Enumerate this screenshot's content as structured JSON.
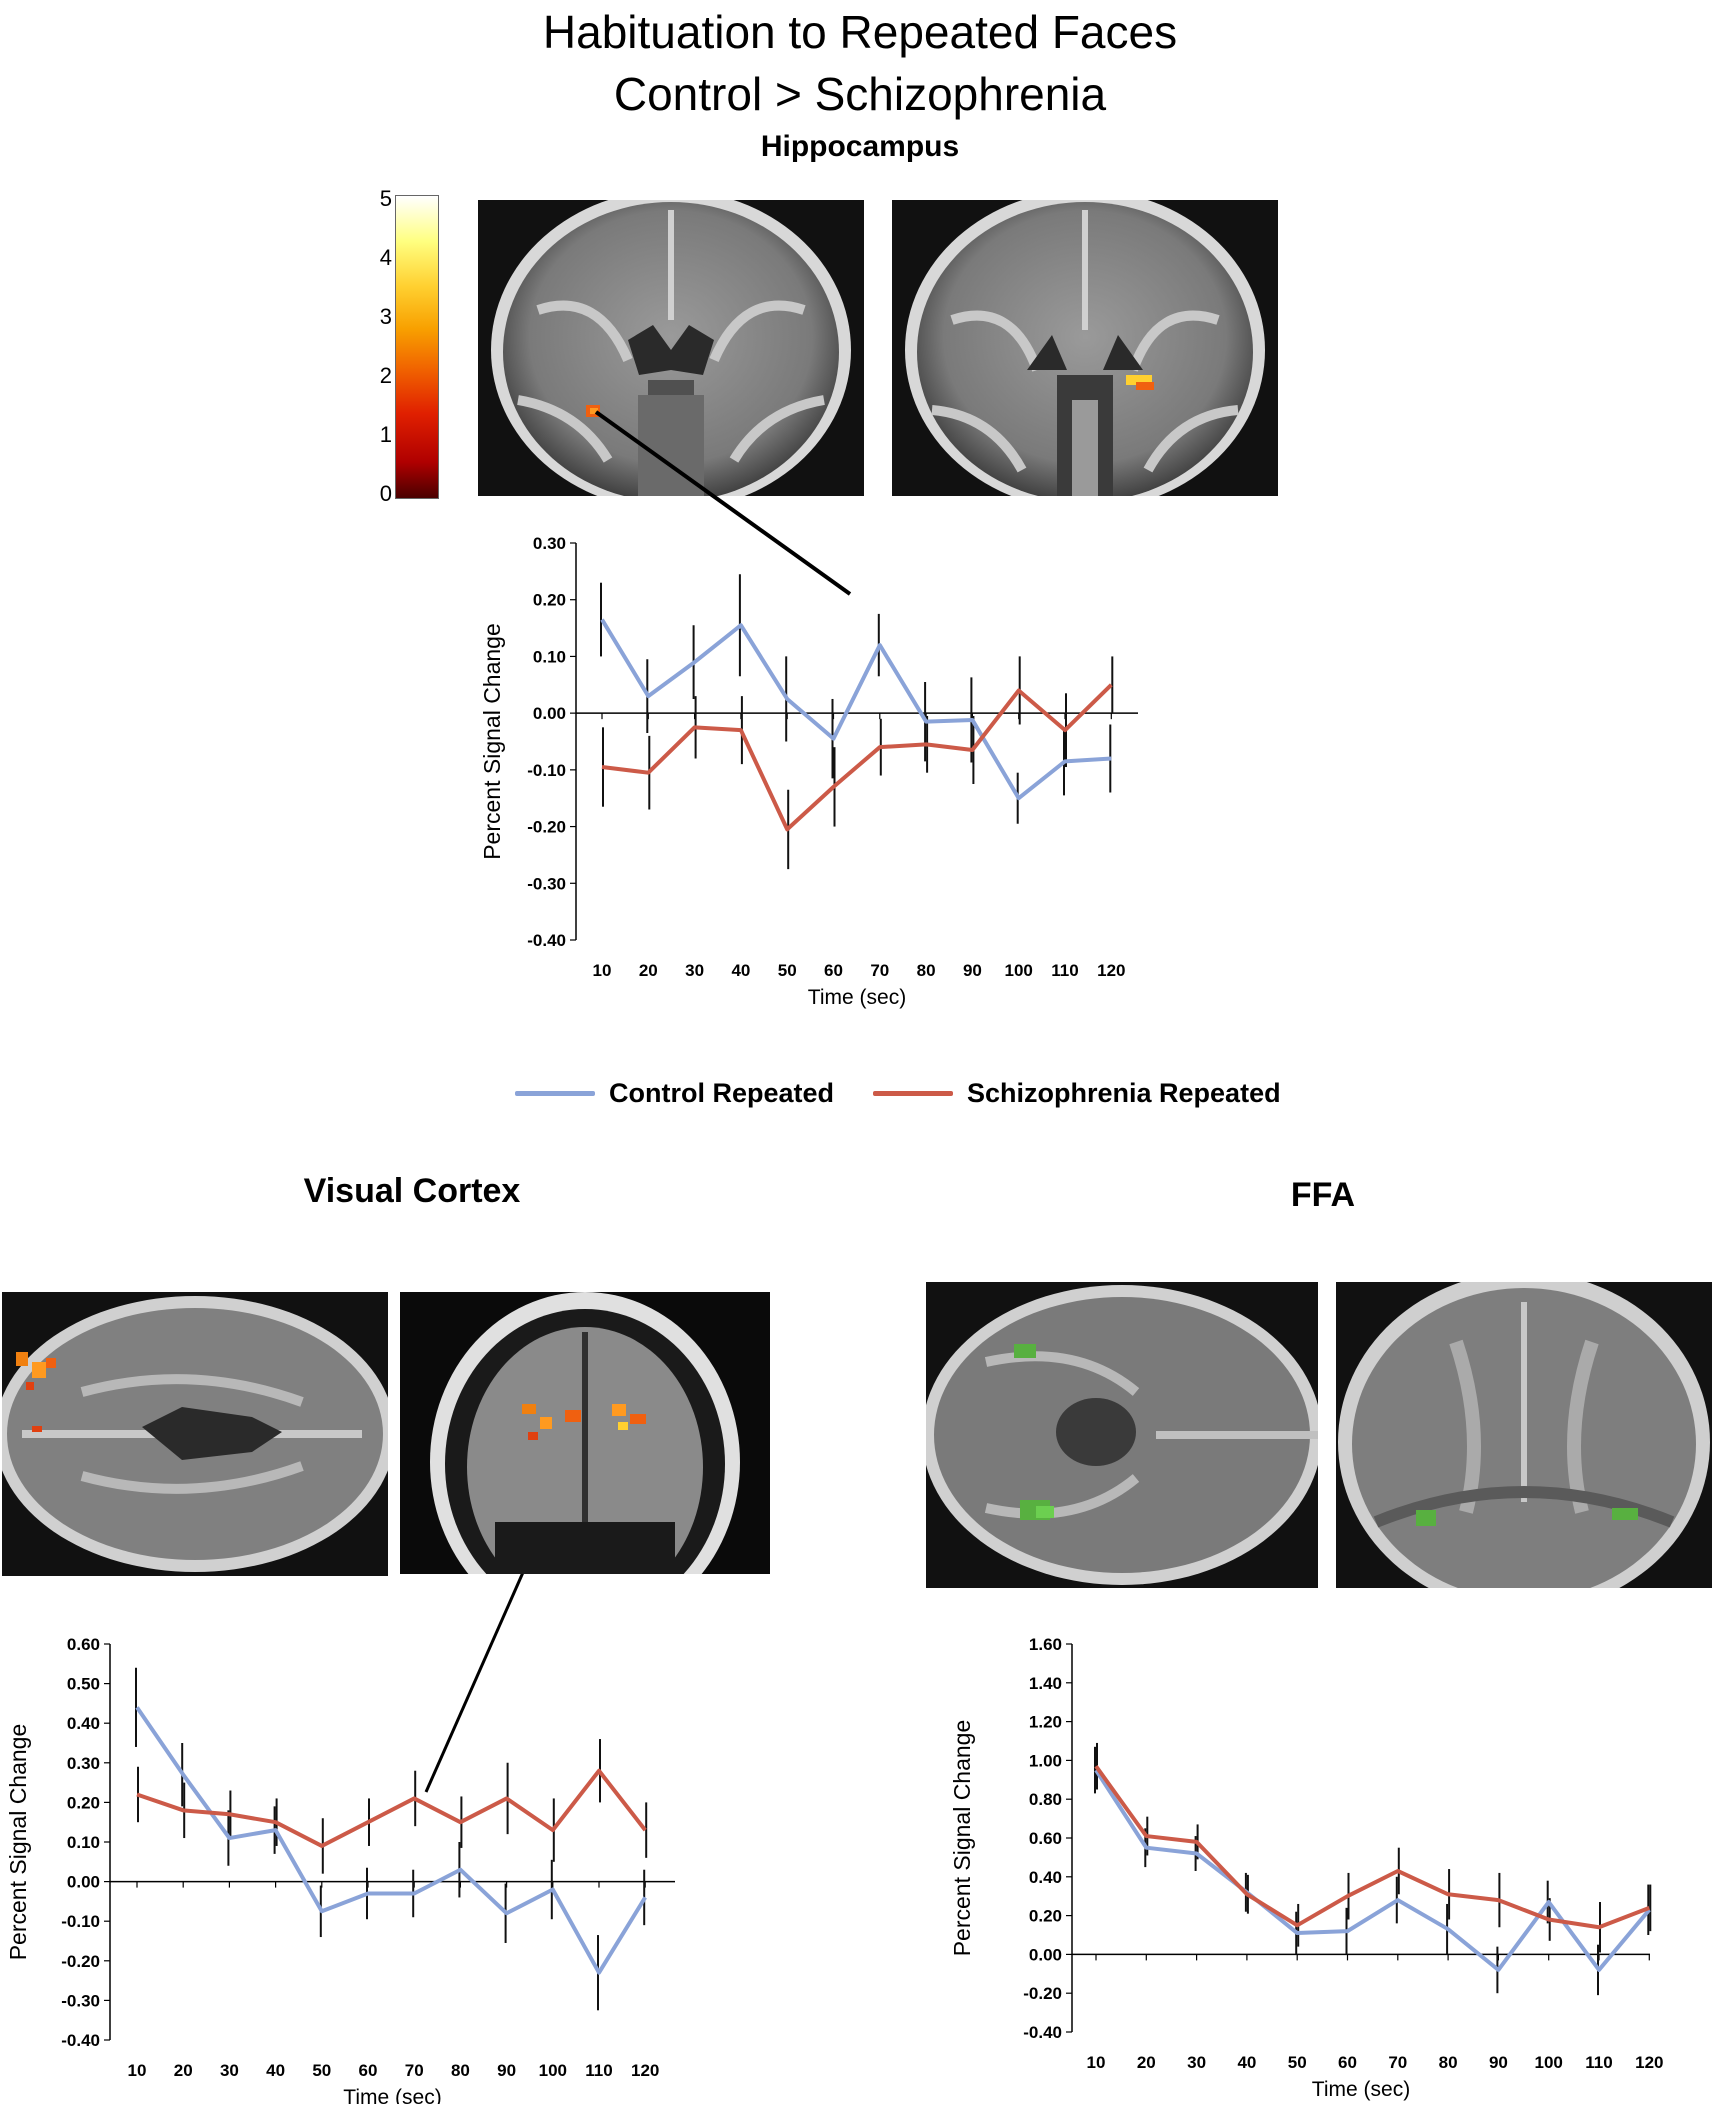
{
  "figure": {
    "title_line1": "Habituation to Repeated Faces",
    "title_line2": "Control > Schizophrenia"
  },
  "panels": {
    "hippocampus_label": "Hippocampus",
    "visual_cortex_label": "Visual Cortex",
    "ffa_label": "FFA"
  },
  "colorbar": {
    "ticks": [
      "5",
      "4",
      "3",
      "2",
      "1",
      "0"
    ],
    "scale": "hot"
  },
  "legend": {
    "control": "Control Repeated",
    "schizophrenia": "Schizophrenia Repeated",
    "control_color": "#8aa3d8",
    "schizophrenia_color": "#cc5a48"
  },
  "chart_data": [
    {
      "type": "line",
      "panel": "Hippocampus",
      "xlabel": "Time (sec)",
      "ylabel": "Percent Signal Change",
      "ylim": [
        -0.4,
        0.3
      ],
      "yticks": [
        "0.30",
        "0.20",
        "0.10",
        "0.00",
        "-0.10",
        "-0.20",
        "-0.30",
        "-0.40"
      ],
      "x": [
        10,
        20,
        30,
        40,
        50,
        60,
        70,
        80,
        90,
        100,
        110,
        120
      ],
      "series": [
        {
          "name": "Control Repeated",
          "values": [
            0.165,
            0.03,
            0.09,
            0.155,
            0.025,
            -0.045,
            0.12,
            -0.015,
            -0.012,
            -0.15,
            -0.085,
            -0.08
          ],
          "errors": [
            0.065,
            0.065,
            0.065,
            0.09,
            0.075,
            0.07,
            0.055,
            0.07,
            0.075,
            0.045,
            0.06,
            0.06
          ]
        },
        {
          "name": "Schizophrenia Repeated",
          "values": [
            -0.095,
            -0.105,
            -0.025,
            -0.03,
            -0.205,
            -0.13,
            -0.06,
            -0.055,
            -0.065,
            0.04,
            -0.03,
            0.05
          ],
          "errors": [
            0.07,
            0.065,
            0.055,
            0.06,
            0.07,
            0.07,
            0.05,
            0.05,
            0.06,
            0.06,
            0.065,
            0.05
          ]
        }
      ]
    },
    {
      "type": "line",
      "panel": "Visual Cortex",
      "xlabel": "Time (sec)",
      "ylabel": "Percent Signal Change",
      "ylim": [
        -0.4,
        0.6
      ],
      "yticks": [
        "0.60",
        "0.50",
        "0.40",
        "0.30",
        "0.20",
        "0.10",
        "0.00",
        "-0.10",
        "-0.20",
        "-0.30",
        "-0.40"
      ],
      "x": [
        10,
        20,
        30,
        40,
        50,
        60,
        70,
        80,
        90,
        100,
        110,
        120
      ],
      "series": [
        {
          "name": "Control Repeated",
          "values": [
            0.44,
            0.27,
            0.11,
            0.13,
            -0.075,
            -0.03,
            -0.03,
            0.03,
            -0.08,
            -0.02,
            -0.23,
            -0.04
          ],
          "errors": [
            0.1,
            0.08,
            0.07,
            0.06,
            0.065,
            0.065,
            0.06,
            0.07,
            0.075,
            0.075,
            0.095,
            0.07
          ]
        },
        {
          "name": "Schizophrenia Repeated",
          "values": [
            0.22,
            0.18,
            0.17,
            0.15,
            0.09,
            0.15,
            0.21,
            0.15,
            0.21,
            0.13,
            0.28,
            0.13
          ],
          "errors": [
            0.07,
            0.07,
            0.06,
            0.06,
            0.07,
            0.06,
            0.07,
            0.065,
            0.09,
            0.08,
            0.08,
            0.07
          ]
        }
      ]
    },
    {
      "type": "line",
      "panel": "FFA",
      "xlabel": "Time (sec)",
      "ylabel": "Percent Signal Change",
      "ylim": [
        -0.4,
        1.6
      ],
      "yticks": [
        "1.60",
        "1.40",
        "1.20",
        "1.00",
        "0.80",
        "0.60",
        "0.40",
        "0.20",
        "0.00",
        "-0.20",
        "-0.40"
      ],
      "x": [
        10,
        20,
        30,
        40,
        50,
        60,
        70,
        80,
        90,
        100,
        110,
        120
      ],
      "series": [
        {
          "name": "Control Repeated",
          "values": [
            0.95,
            0.55,
            0.52,
            0.32,
            0.11,
            0.12,
            0.28,
            0.13,
            -0.08,
            0.27,
            -0.08,
            0.23
          ],
          "errors": [
            0.12,
            0.1,
            0.09,
            0.1,
            0.11,
            0.12,
            0.12,
            0.13,
            0.12,
            0.11,
            0.13,
            0.13
          ]
        },
        {
          "name": "Schizophrenia Repeated",
          "values": [
            0.97,
            0.61,
            0.58,
            0.31,
            0.15,
            0.3,
            0.43,
            0.31,
            0.28,
            0.18,
            0.14,
            0.24
          ],
          "errors": [
            0.12,
            0.1,
            0.09,
            0.1,
            0.11,
            0.12,
            0.12,
            0.13,
            0.14,
            0.11,
            0.13,
            0.12
          ]
        }
      ]
    }
  ]
}
